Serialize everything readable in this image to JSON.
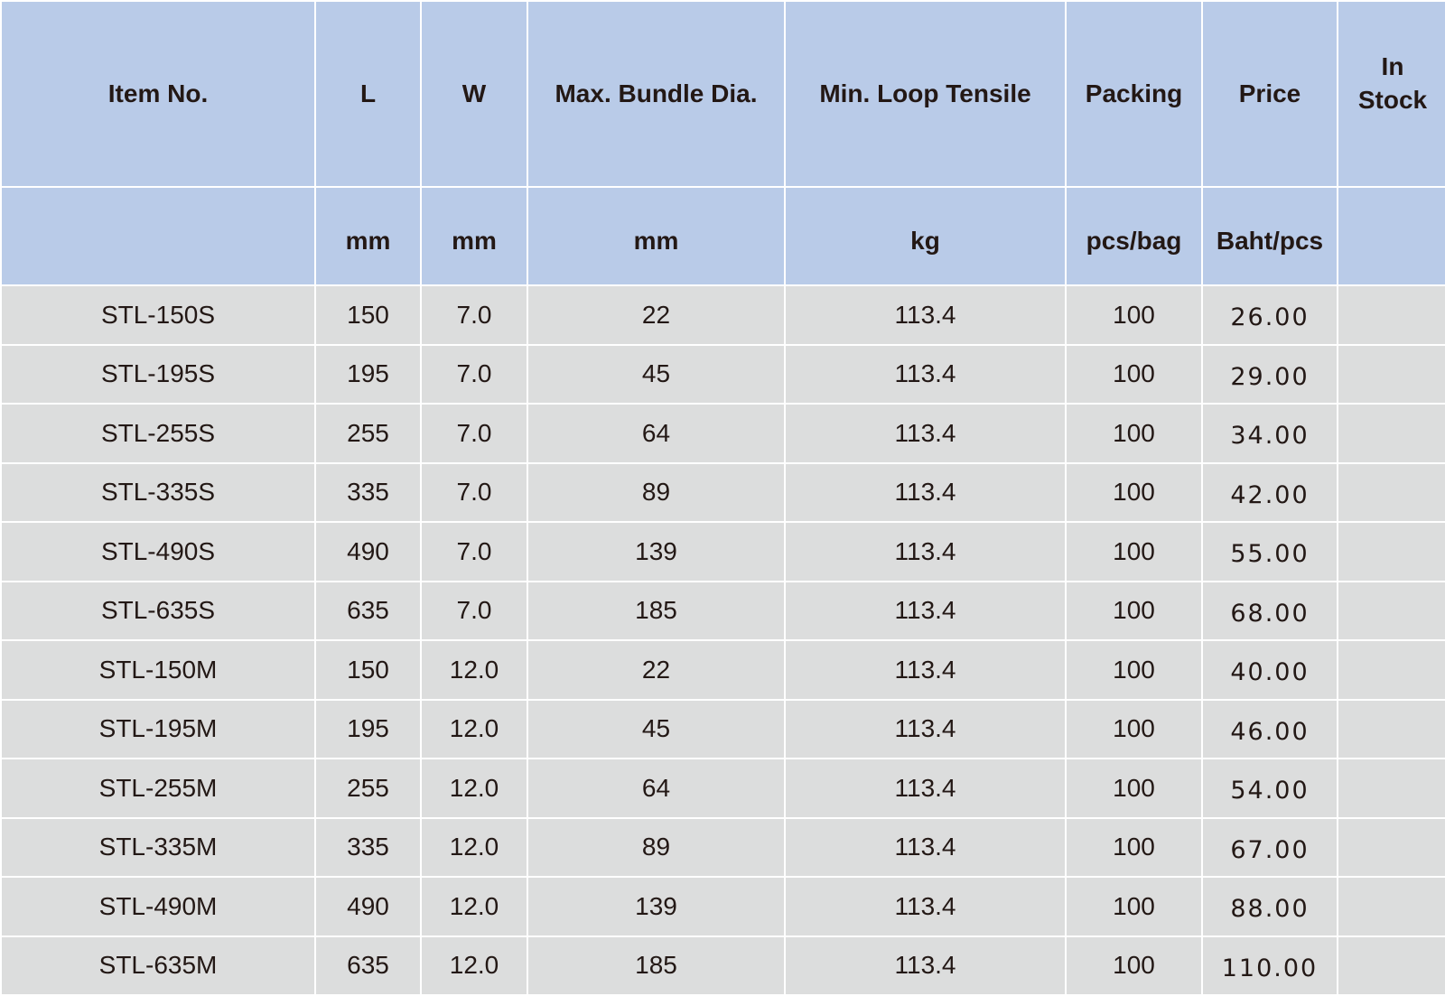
{
  "headers": [
    "Item No.",
    "L",
    "W",
    "Max. Bundle Dia.",
    "Min. Loop Tensile",
    "Packing",
    "Price",
    "In Stock"
  ],
  "in_stock_lines": [
    "In",
    "Stock"
  ],
  "units": [
    "",
    "mm",
    "mm",
    "mm",
    "kg",
    "pcs/bag",
    "Baht/pcs",
    ""
  ],
  "rows": [
    [
      "STL-150S",
      "150",
      "7.0",
      "22",
      "113.4",
      "100",
      "26.00",
      ""
    ],
    [
      "STL-195S",
      "195",
      "7.0",
      "45",
      "113.4",
      "100",
      "29.00",
      ""
    ],
    [
      "STL-255S",
      "255",
      "7.0",
      "64",
      "113.4",
      "100",
      "34.00",
      ""
    ],
    [
      "STL-335S",
      "335",
      "7.0",
      "89",
      "113.4",
      "100",
      "42.00",
      ""
    ],
    [
      "STL-490S",
      "490",
      "7.0",
      "139",
      "113.4",
      "100",
      "55.00",
      ""
    ],
    [
      "STL-635S",
      "635",
      "7.0",
      "185",
      "113.4",
      "100",
      "68.00",
      ""
    ],
    [
      "STL-150M",
      "150",
      "12.0",
      "22",
      "113.4",
      "100",
      "40.00",
      ""
    ],
    [
      "STL-195M",
      "195",
      "12.0",
      "45",
      "113.4",
      "100",
      "46.00",
      ""
    ],
    [
      "STL-255M",
      "255",
      "12.0",
      "64",
      "113.4",
      "100",
      "54.00",
      ""
    ],
    [
      "STL-335M",
      "335",
      "12.0",
      "89",
      "113.4",
      "100",
      "67.00",
      ""
    ],
    [
      "STL-490M",
      "490",
      "12.0",
      "139",
      "113.4",
      "100",
      "88.00",
      ""
    ],
    [
      "STL-635M",
      "635",
      "12.0",
      "185",
      "113.4",
      "100",
      "110.00",
      ""
    ]
  ],
  "colors": {
    "header_bg": "#b9cbe8",
    "row_bg": "#dcdddd",
    "text": "#231815"
  }
}
